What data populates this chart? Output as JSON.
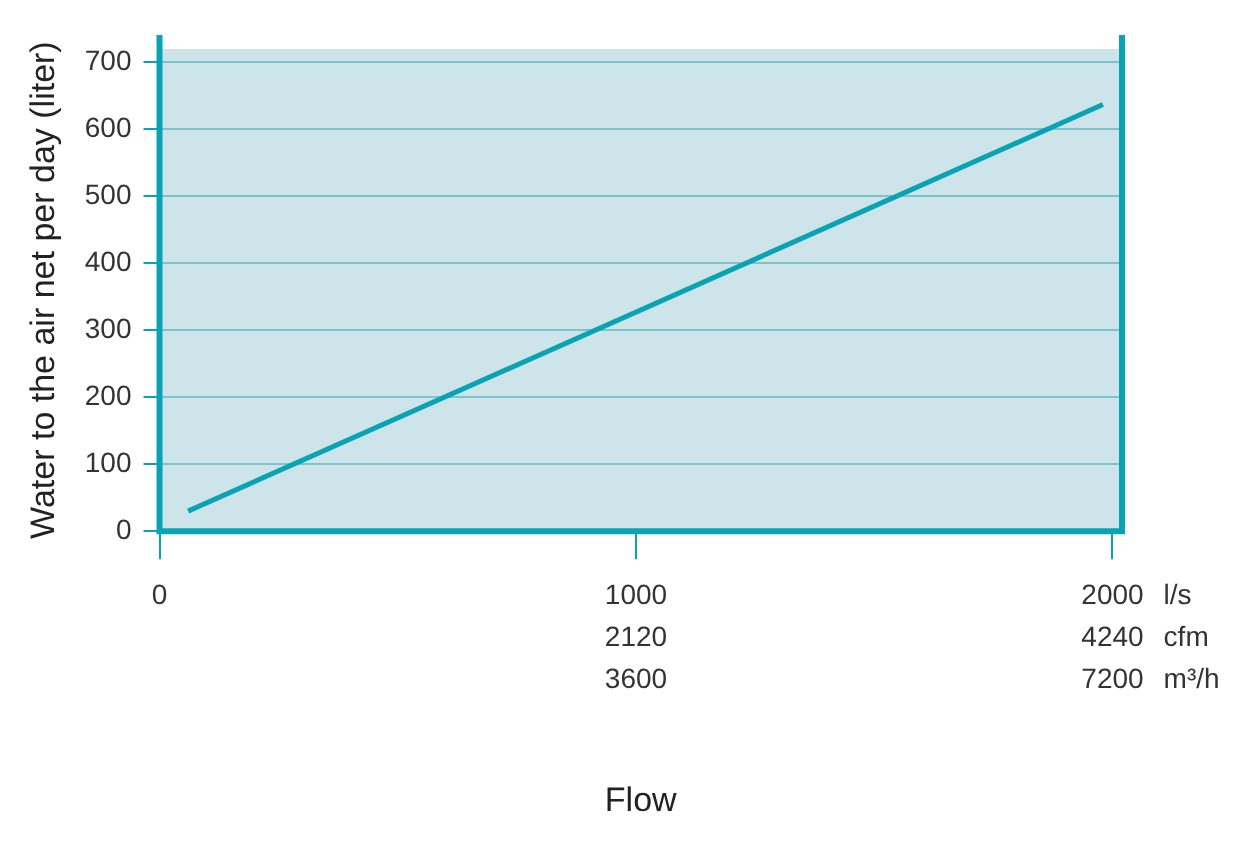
{
  "chart_data": {
    "type": "line",
    "xlabel": "Flow",
    "ylabel": "Water to the air net per day (liter)",
    "x": [
      60,
      1980
    ],
    "series": [
      {
        "color": "#0aa3b3",
        "values": [
          30,
          637
        ]
      }
    ],
    "xlim": [
      0,
      2020
    ],
    "xticks": [
      0,
      1000,
      2000
    ],
    "x2lim": [
      0,
      4282.4
    ],
    "x2ticks": [
      2120,
      4240
    ],
    "annotations": [
      "l/s",
      "cfm",
      "m³/h",
      "3600",
      "7200"
    ],
    "ylim": [
      0,
      720
    ],
    "yticks": [
      0,
      100,
      200,
      300,
      400,
      500,
      600,
      700
    ],
    "grid": "y",
    "legend": false,
    "marker": "none",
    "line_style": "solid"
  }
}
